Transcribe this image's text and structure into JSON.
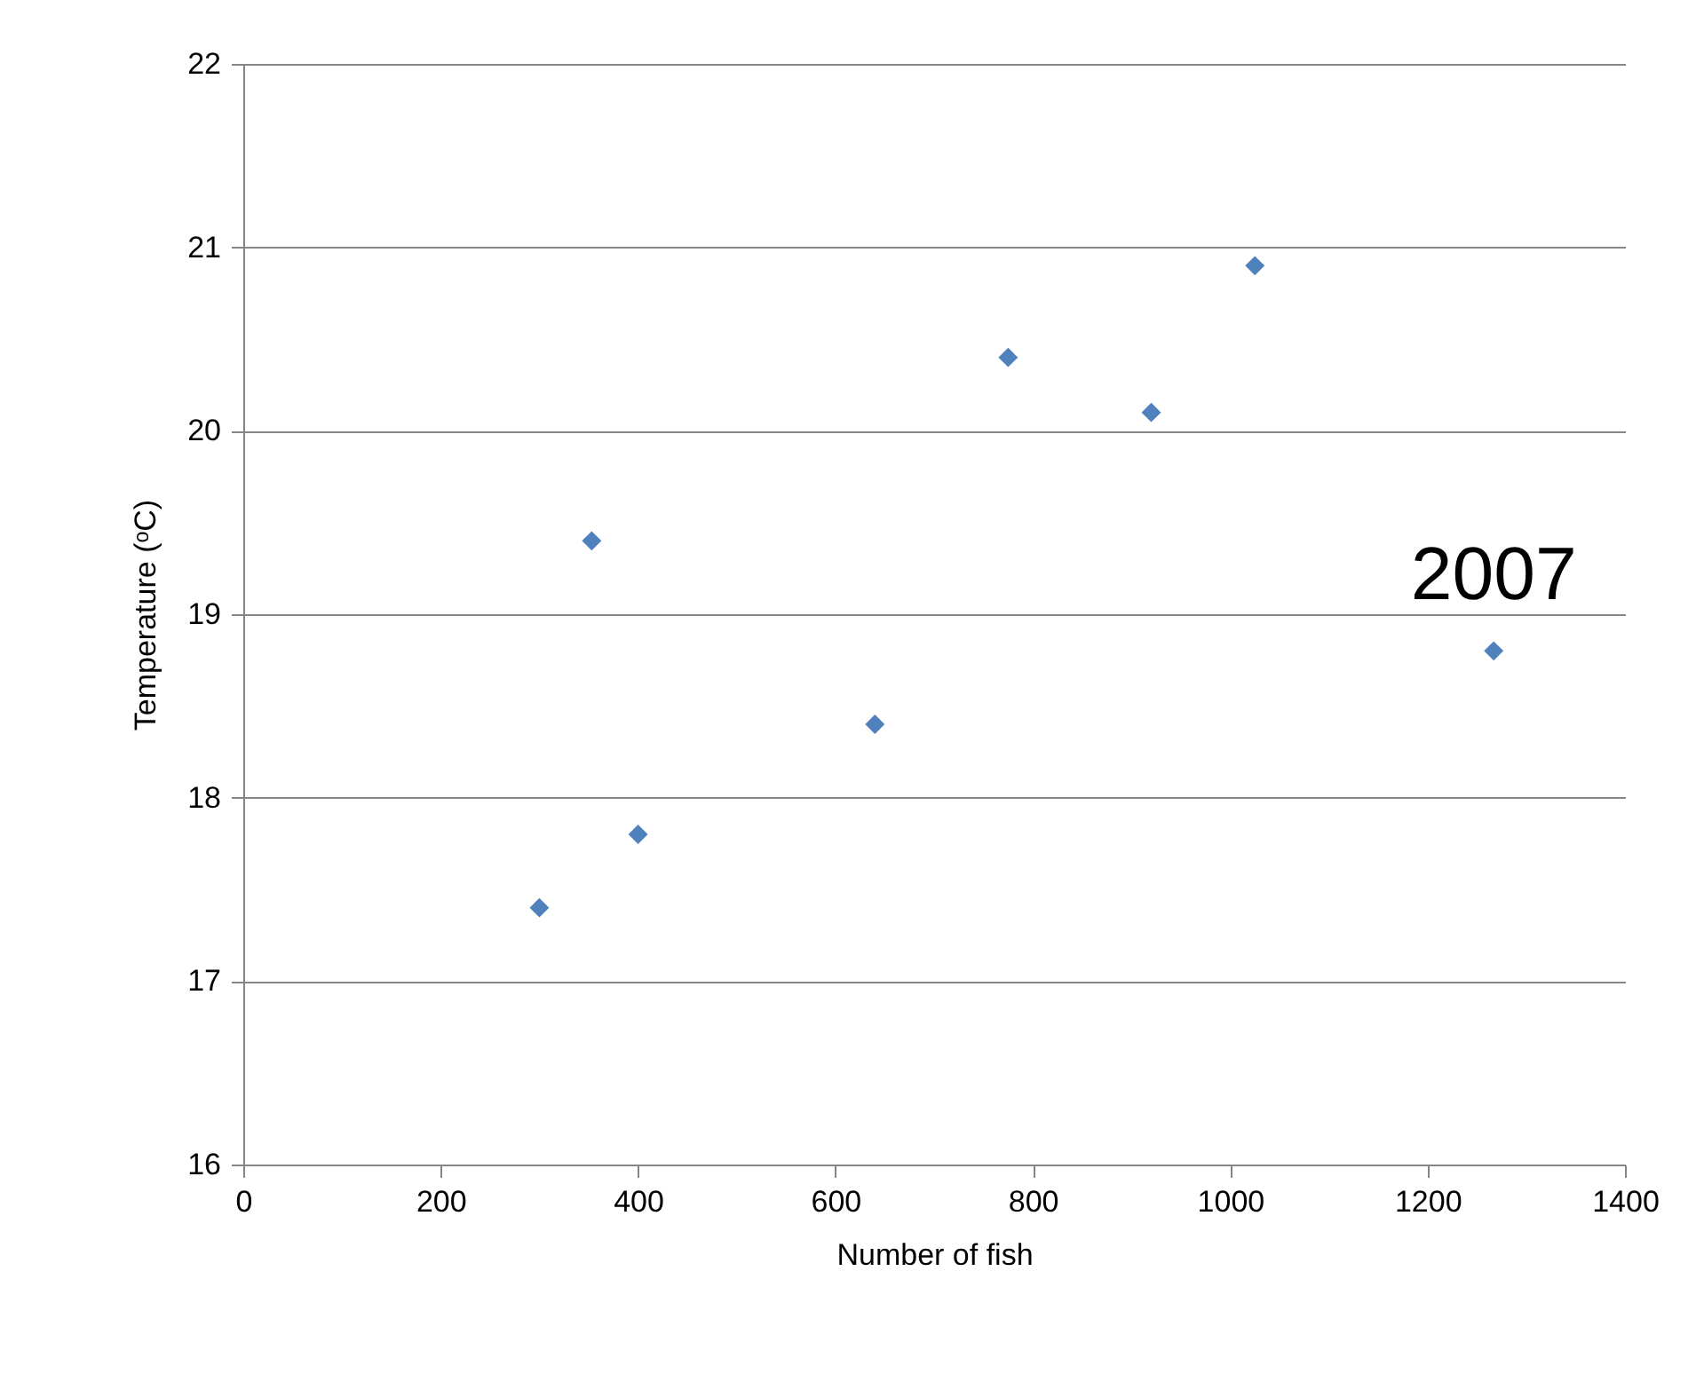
{
  "chart_data": {
    "type": "scatter",
    "xlabel": "Number of fish",
    "ylabel": "Temperature (ᵒC)",
    "x": [
      300,
      353,
      400,
      640,
      775,
      920,
      1025,
      1267
    ],
    "values": [
      17.4,
      19.4,
      17.8,
      18.4,
      20.4,
      20.1,
      20.9,
      18.8
    ],
    "color": "#4f81bd",
    "marker": "diamond",
    "xlim": [
      0,
      1400
    ],
    "xticks": [
      0,
      200,
      400,
      600,
      800,
      1000,
      1200,
      1400
    ],
    "ylim": [
      16,
      22
    ],
    "yticks": [
      16,
      17,
      18,
      19,
      20,
      21,
      22
    ],
    "grid": "y",
    "annotations": [
      {
        "text": "2007",
        "x": 1267,
        "y": 18.8
      }
    ]
  }
}
